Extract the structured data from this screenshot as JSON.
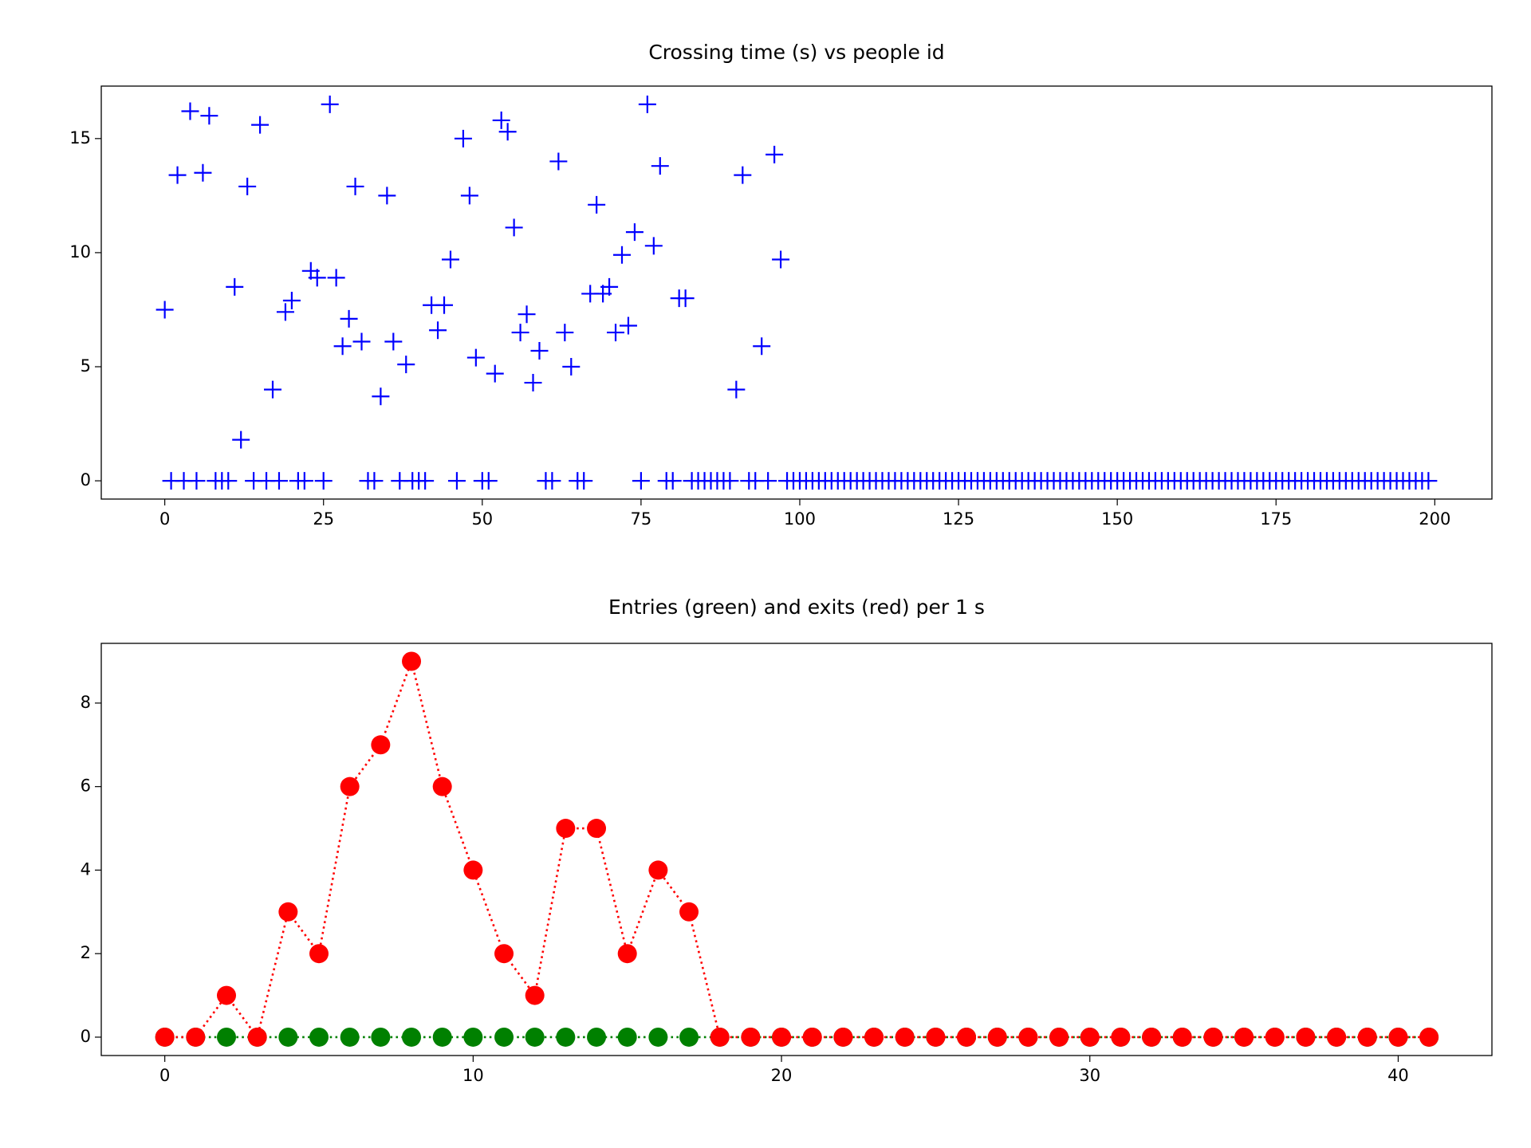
{
  "chart_data": [
    {
      "type": "scatter",
      "title": "Crossing time (s) vs people id",
      "marker": "+",
      "color": "#0000ff",
      "x": [
        0,
        1,
        2,
        3,
        4,
        5,
        6,
        7,
        8,
        9,
        10,
        11,
        12,
        13,
        14,
        15,
        16,
        17,
        18,
        19,
        20,
        21,
        22,
        23,
        24,
        25,
        26,
        27,
        28,
        29,
        30,
        31,
        32,
        33,
        34,
        35,
        36,
        37,
        38,
        39,
        40,
        41,
        42,
        43,
        44,
        45,
        46,
        47,
        48,
        49,
        50,
        51,
        52,
        53,
        54,
        55,
        56,
        57,
        58,
        59,
        60,
        61,
        62,
        63,
        64,
        65,
        66,
        67,
        68,
        69,
        70,
        71,
        72,
        73,
        74,
        75,
        76,
        77,
        78,
        79,
        80,
        81,
        82,
        83,
        84,
        85,
        86,
        87,
        88,
        89,
        90,
        91,
        92,
        93,
        94,
        95,
        96,
        97,
        98,
        99,
        100,
        101,
        102,
        103,
        104,
        105,
        106,
        107,
        108,
        109,
        110,
        111,
        112,
        113,
        114,
        115,
        116,
        117,
        118,
        119,
        120,
        121,
        122,
        123,
        124,
        125,
        126,
        127,
        128,
        129,
        130,
        131,
        132,
        133,
        134,
        135,
        136,
        137,
        138,
        139,
        140,
        141,
        142,
        143,
        144,
        145,
        146,
        147,
        148,
        149,
        150,
        151,
        152,
        153,
        154,
        155,
        156,
        157,
        158,
        159,
        160,
        161,
        162,
        163,
        164,
        165,
        166,
        167,
        168,
        169,
        170,
        171,
        172,
        173,
        174,
        175,
        176,
        177,
        178,
        179,
        180,
        181,
        182,
        183,
        184,
        185,
        186,
        187,
        188,
        189,
        190,
        191,
        192,
        193,
        194,
        195,
        196,
        197,
        198,
        199
      ],
      "values": [
        7.5,
        0,
        13.4,
        0,
        16.2,
        0,
        13.5,
        16.0,
        0,
        0,
        0,
        8.5,
        1.8,
        12.9,
        0,
        15.6,
        0,
        4.0,
        0,
        7.4,
        7.9,
        0,
        0,
        9.2,
        8.9,
        0,
        16.5,
        8.9,
        5.9,
        7.1,
        12.9,
        6.1,
        0,
        0,
        3.7,
        12.5,
        6.1,
        0,
        5.1,
        0,
        0,
        0,
        7.7,
        6.6,
        7.7,
        9.7,
        0,
        15.0,
        12.5,
        5.4,
        0,
        0,
        4.7,
        15.8,
        15.3,
        11.1,
        6.5,
        7.3,
        4.3,
        5.7,
        0,
        0,
        14.0,
        6.5,
        5.0,
        0,
        0,
        8.2,
        12.1,
        8.2,
        8.5,
        6.5,
        9.9,
        6.8,
        10.9,
        0,
        16.5,
        10.3,
        13.8,
        0,
        0,
        8.0,
        8.0,
        0,
        0,
        0,
        0,
        0,
        0,
        0,
        4.0,
        13.4,
        0,
        0,
        5.9,
        0,
        14.3,
        9.7,
        0,
        0,
        0,
        0,
        0,
        0,
        0,
        0,
        0,
        0,
        0,
        0,
        0,
        0,
        0,
        0,
        0,
        0,
        0,
        0,
        0,
        0,
        0,
        0,
        0,
        0,
        0,
        0,
        0,
        0,
        0,
        0,
        0,
        0,
        0,
        0,
        0,
        0,
        0,
        0,
        0,
        0,
        0,
        0,
        0,
        0,
        0,
        0,
        0,
        0,
        0,
        0,
        0,
        0,
        0,
        0,
        0,
        0,
        0,
        0,
        0,
        0,
        0,
        0,
        0,
        0,
        0,
        0,
        0,
        0,
        0,
        0,
        0,
        0,
        0,
        0,
        0,
        0,
        0,
        0,
        0,
        0,
        0,
        0,
        0,
        0,
        0,
        0,
        0,
        0,
        0,
        0,
        0,
        0,
        0,
        0,
        0,
        0,
        0,
        0,
        0,
        0
      ],
      "xlim": [
        -10,
        209
      ],
      "ylim": [
        -0.8,
        17.3
      ],
      "xticks": [
        0,
        25,
        50,
        75,
        100,
        125,
        150,
        175,
        200
      ],
      "yticks": [
        0,
        5,
        10,
        15
      ]
    },
    {
      "type": "line",
      "title": "Entries (green) and exits (red) per 1 s",
      "marker": "o",
      "linestyle": "dotted",
      "x": [
        0,
        1,
        2,
        3,
        4,
        5,
        6,
        7,
        8,
        9,
        10,
        11,
        12,
        13,
        14,
        15,
        16,
        17,
        18,
        19,
        20,
        21,
        22,
        23,
        24,
        25,
        26,
        27,
        28,
        29,
        30,
        31,
        32,
        33,
        34,
        35,
        36,
        37,
        38,
        39,
        40,
        41
      ],
      "series": [
        {
          "color": "#008000",
          "values": [
            0,
            0,
            0,
            0,
            0,
            0,
            0,
            0,
            0,
            0,
            0,
            0,
            0,
            0,
            0,
            0,
            0,
            0,
            0,
            0,
            0,
            0,
            0,
            0,
            0,
            0,
            0,
            0,
            0,
            0,
            0,
            0,
            0,
            0,
            0,
            0,
            0,
            0,
            0,
            0,
            0,
            0
          ]
        },
        {
          "color": "#ff0000",
          "values": [
            0,
            0,
            1,
            0,
            3,
            2,
            6,
            7,
            9,
            6,
            4,
            2,
            1,
            5,
            5,
            2,
            4,
            3,
            0,
            0,
            0,
            0,
            0,
            0,
            0,
            0,
            0,
            0,
            0,
            0,
            0,
            0,
            0,
            0,
            0,
            0,
            0,
            0,
            0,
            0,
            0,
            0
          ]
        }
      ],
      "xlim": [
        -2.06,
        43.04
      ],
      "ylim": [
        -0.44,
        9.43
      ],
      "xticks": [
        0,
        10,
        20,
        30,
        40
      ],
      "yticks": [
        0,
        2,
        4,
        6,
        8
      ]
    }
  ]
}
